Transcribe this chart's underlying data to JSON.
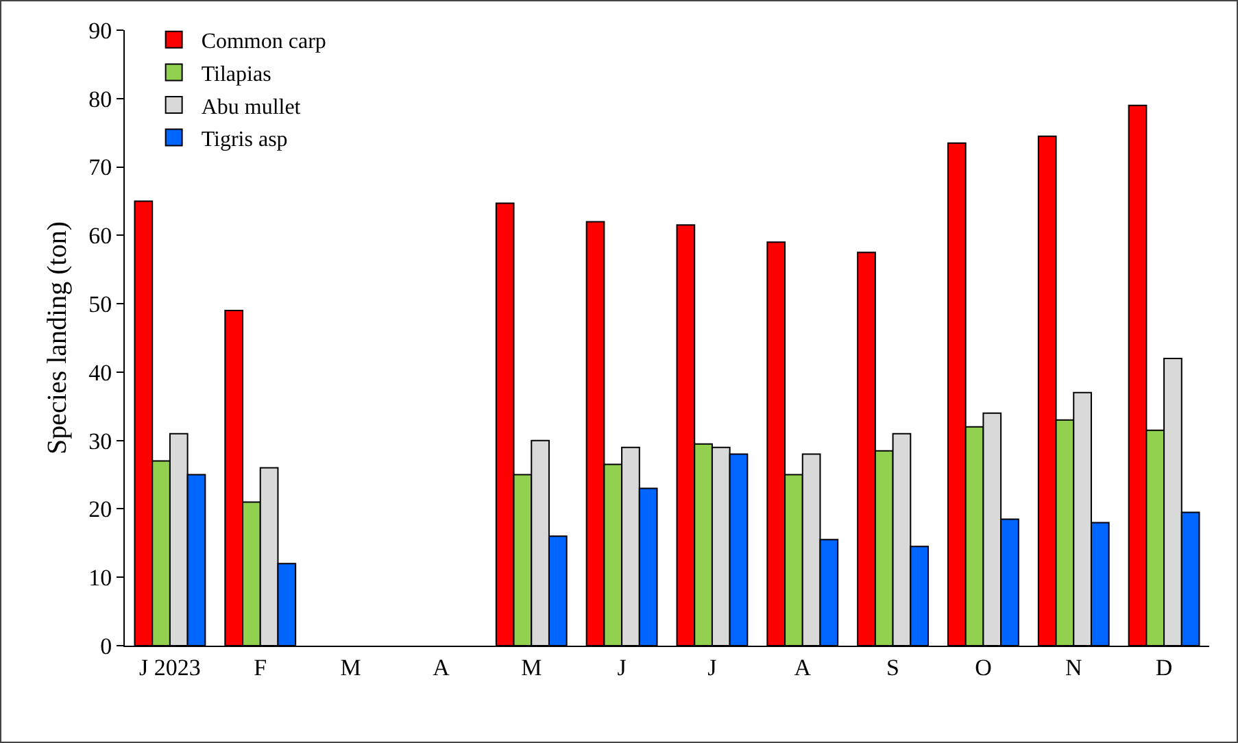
{
  "chart_data": {
    "type": "bar",
    "ylabel": "Species landing (ton)",
    "categories": [
      "J 2023",
      "F",
      "M",
      "A",
      "M",
      "J",
      "J",
      "A",
      "S",
      "O",
      "N",
      "D"
    ],
    "series": [
      {
        "name": "Common carp",
        "color": "#ff0000",
        "values": [
          65,
          49,
          null,
          null,
          64.7,
          62,
          61.5,
          59,
          57.5,
          73.5,
          74.5,
          79
        ]
      },
      {
        "name": "Tilapias",
        "color": "#92d050",
        "values": [
          27,
          21,
          null,
          null,
          25,
          26.5,
          29.5,
          25,
          28.5,
          32,
          33,
          31.5
        ]
      },
      {
        "name": "Abu mullet",
        "color": "#d9d9d9",
        "values": [
          31,
          26,
          null,
          null,
          30,
          29,
          29,
          28,
          31,
          34,
          37,
          42
        ]
      },
      {
        "name": "Tigris asp",
        "color": "#0066ff",
        "values": [
          25,
          12,
          null,
          null,
          16,
          23,
          28,
          15.5,
          14.5,
          18.5,
          18,
          19.5
        ]
      }
    ],
    "ylim": [
      0,
      90
    ],
    "yticks": [
      0,
      10,
      20,
      30,
      40,
      50,
      60,
      70,
      80,
      90
    ],
    "grid": false,
    "legend": "top left"
  }
}
